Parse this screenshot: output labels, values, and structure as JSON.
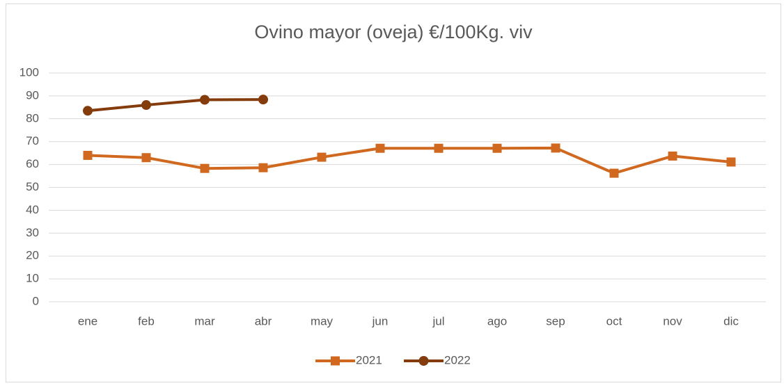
{
  "chart_data": {
    "type": "line",
    "title": "Ovino mayor (oveja) €/100Kg. viv",
    "categories": [
      "ene",
      "feb",
      "mar",
      "abr",
      "may",
      "jun",
      "jul",
      "ago",
      "sep",
      "oct",
      "nov",
      "dic"
    ],
    "series": [
      {
        "name": "2021",
        "color": "#d0691f",
        "marker": "square",
        "values": [
          64,
          63,
          58.3,
          58.6,
          63.2,
          67.1,
          67.1,
          67.1,
          67.2,
          56.2,
          63.7,
          61.1
        ]
      },
      {
        "name": "2022",
        "color": "#843c0c",
        "marker": "circle",
        "values": [
          83.5,
          86,
          88.3,
          88.4,
          null,
          null,
          null,
          null,
          null,
          null,
          null,
          null
        ]
      }
    ],
    "ylim": [
      0,
      100
    ],
    "yticks": [
      0,
      10,
      20,
      30,
      40,
      50,
      60,
      70,
      80,
      90,
      100
    ],
    "grid": true,
    "legend": "bottom"
  }
}
